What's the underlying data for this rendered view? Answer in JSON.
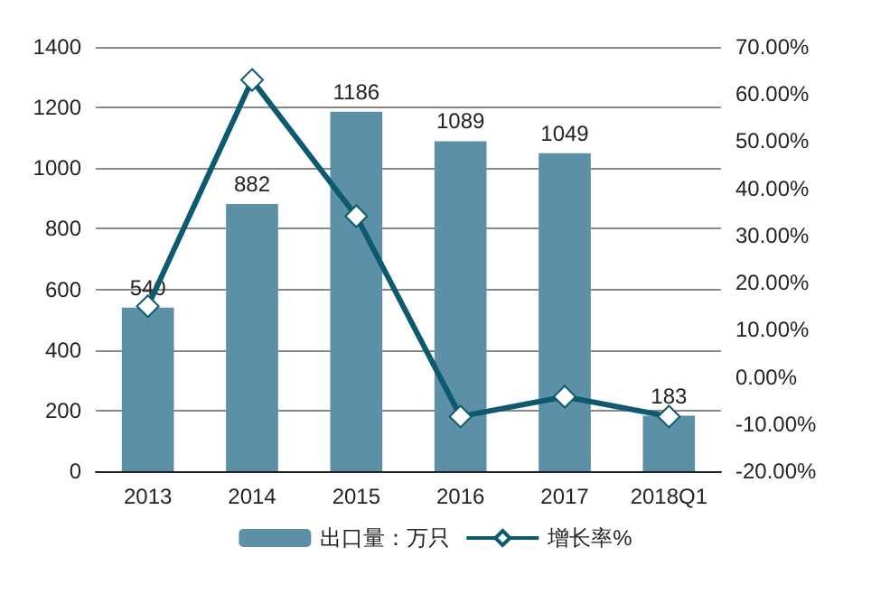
{
  "chart_data": {
    "type": "bar",
    "categories": [
      "2013",
      "2014",
      "2015",
      "2016",
      "2017",
      "2018Q1"
    ],
    "series": [
      {
        "name": "出口量：万只",
        "color": "#5b90a7",
        "values": [
          540,
          882,
          1186,
          1089,
          1049,
          183
        ],
        "value_labels": [
          "540",
          "882",
          "1186",
          "1089",
          "1049",
          "183"
        ]
      },
      {
        "name": "增长率%",
        "type": "line",
        "axis": "y2",
        "color": "#0d5a70",
        "values": [
          15.0,
          63.0,
          34.1,
          -8.4,
          -4.2,
          -8.4
        ]
      }
    ],
    "ylim": [
      0,
      1400
    ],
    "yticks": [
      0,
      200,
      400,
      600,
      800,
      1000,
      1200,
      1400
    ],
    "y2lim": [
      -20,
      70
    ],
    "y2ticks": [
      {
        "value": -20,
        "label": "-20.00%"
      },
      {
        "value": -10,
        "label": "-10.00%"
      },
      {
        "value": 0,
        "label": "0.00%"
      },
      {
        "value": 10,
        "label": "10.00%"
      },
      {
        "value": 20,
        "label": "20.00%"
      },
      {
        "value": 30,
        "label": "30.00%"
      },
      {
        "value": 40,
        "label": "40.00%"
      },
      {
        "value": 50,
        "label": "50.00%"
      },
      {
        "value": 60,
        "label": "60.00%"
      },
      {
        "value": 70,
        "label": "70.00%"
      }
    ],
    "grid": "y",
    "legend": "bottom",
    "marker": "diamond"
  }
}
